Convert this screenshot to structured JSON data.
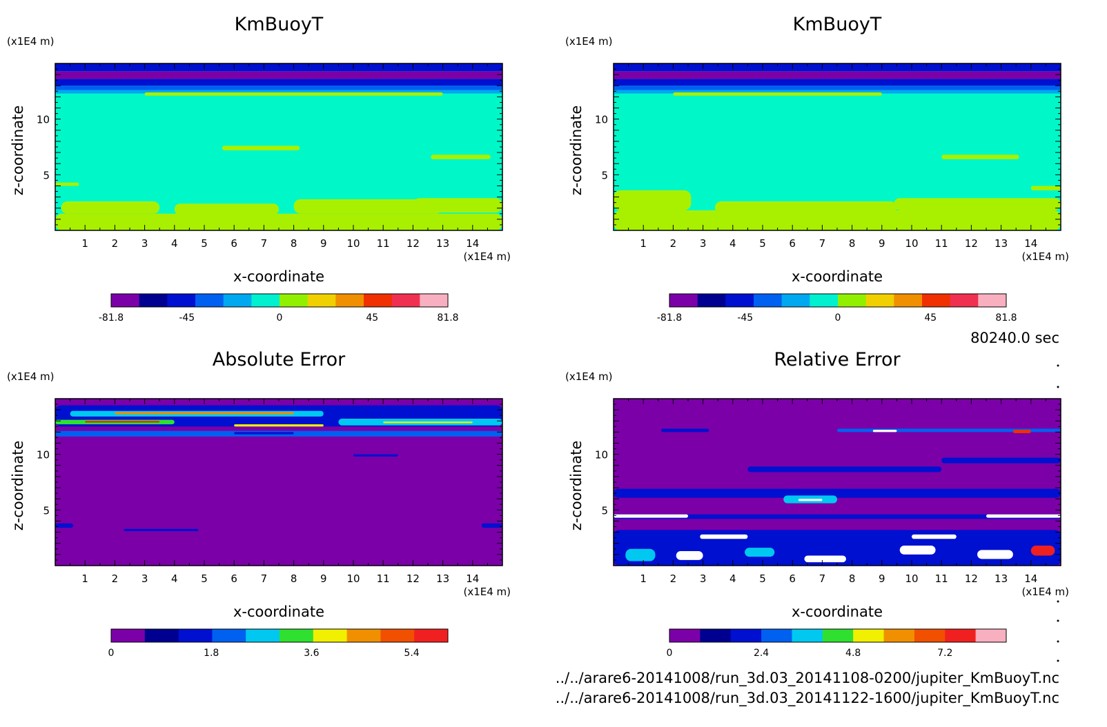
{
  "time_label": "80240.0 sec",
  "files": [
    "../../arare6-20141008/run_3d.03_20141108-0200/jupiter_KmBuoyT.nc",
    "../../arare6-20141008/run_3d.03_20141122-1600/jupiter_KmBuoyT.nc"
  ],
  "chart_data": [
    {
      "type": "heatmap",
      "title": "KmBuoyT",
      "xlabel": "x-coordinate",
      "ylabel": "z-coordinate",
      "x_unit": "(x1E4 m)",
      "y_unit": "(x1E4 m)",
      "xlim": [
        0,
        15
      ],
      "ylim": [
        0,
        15
      ],
      "x_ticks": [
        "1",
        "2",
        "3",
        "4",
        "5",
        "6",
        "7",
        "8",
        "9",
        "10",
        "11",
        "12",
        "13",
        "14"
      ],
      "y_ticks": [
        "5",
        "10"
      ],
      "colorbar": {
        "colors": [
          "#7B00A8",
          "#000090",
          "#0010D0",
          "#0060F0",
          "#00A8F0",
          "#00F0D0",
          "#90F000",
          "#F0D000",
          "#F09000",
          "#F03000",
          "#F03050",
          "#F8B0C0"
        ],
        "tick_labels": [
          "-81.8",
          "-45",
          "0",
          "45",
          "81.8"
        ],
        "tick_values": [
          -81.8,
          -45,
          0,
          45,
          81.8
        ],
        "range": [
          -81.8,
          81.8
        ]
      },
      "field": {
        "background": "#00F8C8",
        "top_bands": [
          {
            "from": 14.3,
            "to": 15,
            "color": "#0010D0"
          },
          {
            "from": 13.6,
            "to": 14.3,
            "color": "#7B00A8"
          },
          {
            "from": 13.0,
            "to": 13.6,
            "color": "#0010D0"
          },
          {
            "from": 12.6,
            "to": 13.0,
            "color": "#0060F0"
          },
          {
            "from": 12.3,
            "to": 12.6,
            "color": "#00A8F0"
          }
        ],
        "positive_patches": [
          {
            "x": [
              0,
              15
            ],
            "z": [
              0,
              1.5
            ]
          },
          {
            "x": [
              0.2,
              3.5
            ],
            "z": [
              1.5,
              2.6
            ]
          },
          {
            "x": [
              4,
              7.5
            ],
            "z": [
              1.4,
              2.4
            ]
          },
          {
            "x": [
              8,
              13
            ],
            "z": [
              1.5,
              2.8
            ]
          },
          {
            "x": [
              12,
              15
            ],
            "z": [
              1.6,
              2.9
            ]
          },
          {
            "x": [
              5.6,
              8.2
            ],
            "z": [
              7.2,
              7.6
            ]
          },
          {
            "x": [
              12.6,
              14.6
            ],
            "z": [
              6.4,
              6.8
            ]
          },
          {
            "x": [
              0,
              0.8
            ],
            "z": [
              4.0,
              4.3
            ]
          },
          {
            "x": [
              3,
              13
            ],
            "z": [
              12.1,
              12.4
            ]
          }
        ]
      }
    },
    {
      "type": "heatmap",
      "title": "KmBuoyT",
      "xlabel": "x-coordinate",
      "ylabel": "z-coordinate",
      "x_unit": "(x1E4 m)",
      "y_unit": "(x1E4 m)",
      "xlim": [
        0,
        15
      ],
      "ylim": [
        0,
        15
      ],
      "x_ticks": [
        "1",
        "2",
        "3",
        "4",
        "5",
        "6",
        "7",
        "8",
        "9",
        "10",
        "11",
        "12",
        "13",
        "14"
      ],
      "y_ticks": [
        "5",
        "10"
      ],
      "colorbar": {
        "colors": [
          "#7B00A8",
          "#000090",
          "#0010D0",
          "#0060F0",
          "#00A8F0",
          "#00F0D0",
          "#90F000",
          "#F0D000",
          "#F09000",
          "#F03000",
          "#F03050",
          "#F8B0C0"
        ],
        "tick_labels": [
          "-81.8",
          "-45",
          "0",
          "45",
          "81.8"
        ],
        "tick_values": [
          -81.8,
          -45,
          0,
          45,
          81.8
        ],
        "range": [
          -81.8,
          81.8
        ]
      },
      "field": {
        "background": "#00F8C8",
        "top_bands": [
          {
            "from": 14.3,
            "to": 15,
            "color": "#0010D0"
          },
          {
            "from": 13.6,
            "to": 14.3,
            "color": "#7B00A8"
          },
          {
            "from": 13.0,
            "to": 13.6,
            "color": "#0010D0"
          },
          {
            "from": 12.6,
            "to": 13.0,
            "color": "#0060F0"
          },
          {
            "from": 12.3,
            "to": 12.6,
            "color": "#00A8F0"
          }
        ],
        "positive_patches": [
          {
            "x": [
              0,
              15
            ],
            "z": [
              0,
              1.8
            ]
          },
          {
            "x": [
              0,
              2.6
            ],
            "z": [
              1.8,
              3.6
            ]
          },
          {
            "x": [
              3.4,
              9.5
            ],
            "z": [
              1.5,
              2.6
            ]
          },
          {
            "x": [
              9.4,
              15
            ],
            "z": [
              1.8,
              2.9
            ]
          },
          {
            "x": [
              11,
              13.6
            ],
            "z": [
              6.4,
              6.8
            ]
          },
          {
            "x": [
              14,
              15
            ],
            "z": [
              3.6,
              4.0
            ]
          },
          {
            "x": [
              2,
              9
            ],
            "z": [
              12.1,
              12.4
            ]
          }
        ]
      }
    },
    {
      "type": "heatmap",
      "title": "Absolute Error",
      "xlabel": "x-coordinate",
      "ylabel": "z-coordinate",
      "x_unit": "(x1E4 m)",
      "y_unit": "(x1E4 m)",
      "xlim": [
        0,
        15
      ],
      "ylim": [
        0,
        15
      ],
      "x_ticks": [
        "1",
        "2",
        "3",
        "4",
        "5",
        "6",
        "7",
        "8",
        "9",
        "10",
        "11",
        "12",
        "13",
        "14"
      ],
      "y_ticks": [
        "5",
        "10"
      ],
      "colorbar": {
        "colors": [
          "#7B00A8",
          "#000090",
          "#0010D0",
          "#0060F0",
          "#00C8F0",
          "#30E030",
          "#F0F000",
          "#F09000",
          "#F05000",
          "#F02020"
        ],
        "tick_labels": [
          "0",
          "1.8",
          "3.6",
          "5.4"
        ],
        "tick_values": [
          0,
          1.8,
          3.6,
          5.4
        ],
        "range": [
          0,
          6.05
        ]
      },
      "field": {
        "background": "#7B00A8",
        "patches": [
          {
            "x": [
              0,
              15
            ],
            "z": [
              12.5,
              14.4
            ],
            "color": "#0010D0"
          },
          {
            "x": [
              0.5,
              9
            ],
            "z": [
              13.4,
              13.9
            ],
            "color": "#00C8F0"
          },
          {
            "x": [
              2,
              8
            ],
            "z": [
              13.6,
              13.8
            ],
            "color": "#F09000"
          },
          {
            "x": [
              0,
              4
            ],
            "z": [
              12.7,
              13.1
            ],
            "color": "#30E030"
          },
          {
            "x": [
              1,
              3.5
            ],
            "z": [
              12.85,
              13.0
            ],
            "color": "#F02020"
          },
          {
            "x": [
              9.5,
              15
            ],
            "z": [
              12.6,
              13.2
            ],
            "color": "#00C8F0"
          },
          {
            "x": [
              11,
              14
            ],
            "z": [
              12.8,
              12.95
            ],
            "color": "#F0F000"
          },
          {
            "x": [
              6,
              9
            ],
            "z": [
              12.5,
              12.7
            ],
            "color": "#F0F000"
          },
          {
            "x": [
              0,
              15
            ],
            "z": [
              11.6,
              12.1
            ],
            "color": "#0060F0"
          },
          {
            "x": [
              6,
              8
            ],
            "z": [
              11.8,
              12.0
            ],
            "color": "#0010D0"
          },
          {
            "x": [
              10,
              11.5
            ],
            "z": [
              9.8,
              10.0
            ],
            "color": "#0010D0"
          },
          {
            "x": [
              2.3,
              4.8
            ],
            "z": [
              3.1,
              3.3
            ],
            "color": "#0010D0"
          },
          {
            "x": [
              0,
              0.6
            ],
            "z": [
              3.4,
              3.8
            ],
            "color": "#0010D0"
          },
          {
            "x": [
              14.3,
              15
            ],
            "z": [
              3.4,
              3.8
            ],
            "color": "#0010D0"
          }
        ]
      }
    },
    {
      "type": "heatmap",
      "title": "Relative Error",
      "xlabel": "x-coordinate",
      "ylabel": "z-coordinate",
      "x_unit": "(x1E4 m)",
      "y_unit": "(x1E4 m)",
      "xlim": [
        0,
        15
      ],
      "ylim": [
        0,
        15
      ],
      "x_ticks": [
        "1",
        "2",
        "3",
        "4",
        "5",
        "6",
        "7",
        "8",
        "9",
        "10",
        "11",
        "12",
        "13",
        "14"
      ],
      "y_ticks": [
        "5",
        "10"
      ],
      "colorbar": {
        "colors": [
          "#7B00A8",
          "#000090",
          "#0010D0",
          "#0060F0",
          "#00C8F0",
          "#30E030",
          "#F0F000",
          "#F09000",
          "#F05000",
          "#F02020",
          "#F8B0C0"
        ],
        "tick_labels": [
          "0",
          "2.4",
          "4.8",
          "7.2"
        ],
        "tick_values": [
          0,
          2.4,
          4.8,
          7.2
        ],
        "range": [
          0,
          8.8
        ]
      },
      "field": {
        "background": "#7B00A8",
        "patches": [
          {
            "x": [
              0,
              15
            ],
            "z": [
              0,
              3.2
            ],
            "color": "#0010D0"
          },
          {
            "x": [
              0,
              15
            ],
            "z": [
              4.2,
              4.6
            ],
            "color": "#0010D0"
          },
          {
            "x": [
              0,
              2.5
            ],
            "z": [
              4.3,
              4.6
            ],
            "color": "#FFFFFF"
          },
          {
            "x": [
              12.5,
              15
            ],
            "z": [
              4.3,
              4.6
            ],
            "color": "#FFFFFF"
          },
          {
            "x": [
              0,
              15
            ],
            "z": [
              6.1,
              6.9
            ],
            "color": "#0010D0"
          },
          {
            "x": [
              5.7,
              7.5
            ],
            "z": [
              5.6,
              6.3
            ],
            "color": "#00C8F0"
          },
          {
            "x": [
              6.2,
              7.0
            ],
            "z": [
              5.8,
              6.0
            ],
            "color": "#FFFFFF"
          },
          {
            "x": [
              4.5,
              11
            ],
            "z": [
              8.4,
              8.9
            ],
            "color": "#0010D0"
          },
          {
            "x": [
              11,
              15
            ],
            "z": [
              9.2,
              9.7
            ],
            "color": "#0010D0"
          },
          {
            "x": [
              1.6,
              3.2
            ],
            "z": [
              12.0,
              12.3
            ],
            "color": "#0010D0"
          },
          {
            "x": [
              7.5,
              15
            ],
            "z": [
              12.0,
              12.3
            ],
            "color": "#0060F0"
          },
          {
            "x": [
              8.7,
              9.5
            ],
            "z": [
              12.0,
              12.2
            ],
            "color": "#FFFFFF"
          },
          {
            "x": [
              13.4,
              14.0
            ],
            "z": [
              11.9,
              12.2
            ],
            "color": "#F03000"
          },
          {
            "x": [
              2.9,
              4.5
            ],
            "z": [
              2.4,
              2.8
            ],
            "color": "#FFFFFF"
          },
          {
            "x": [
              10,
              11.5
            ],
            "z": [
              2.4,
              2.8
            ],
            "color": "#FFFFFF"
          },
          {
            "x": [
              0.4,
              1.4
            ],
            "z": [
              0.4,
              1.5
            ],
            "color": "#00C8F0"
          },
          {
            "x": [
              2.1,
              3.0
            ],
            "z": [
              0.5,
              1.3
            ],
            "color": "#FFFFFF"
          },
          {
            "x": [
              4.4,
              5.4
            ],
            "z": [
              0.8,
              1.6
            ],
            "color": "#00C8F0"
          },
          {
            "x": [
              6.4,
              7.8
            ],
            "z": [
              0.3,
              0.9
            ],
            "color": "#FFFFFF"
          },
          {
            "x": [
              9.6,
              10.8
            ],
            "z": [
              1.0,
              1.8
            ],
            "color": "#FFFFFF"
          },
          {
            "x": [
              12.2,
              13.4
            ],
            "z": [
              0.6,
              1.4
            ],
            "color": "#FFFFFF"
          },
          {
            "x": [
              14.0,
              14.8
            ],
            "z": [
              0.9,
              1.8
            ],
            "color": "#F02020"
          }
        ]
      }
    }
  ]
}
